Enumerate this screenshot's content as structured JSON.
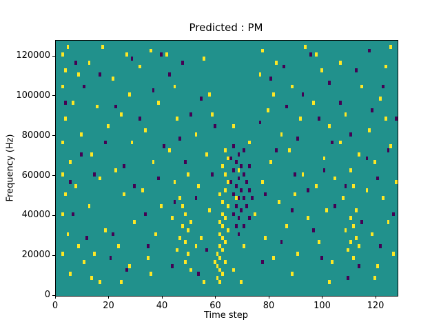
{
  "chart_data": {
    "type": "heatmap",
    "title": "Predicted : PM",
    "xlabel": "Time step",
    "ylabel": "Frequency (Hz)",
    "xlim": [
      0,
      128
    ],
    "ylim": [
      0,
      128000
    ],
    "grid": [
      128,
      64
    ],
    "x_ticks": [
      0,
      20,
      40,
      60,
      80,
      100,
      120
    ],
    "y_ticks": [
      0,
      20000,
      40000,
      60000,
      80000,
      100000,
      120000
    ],
    "legend": "none",
    "colors": {
      "background": "#21918c",
      "high": "#fde725",
      "low": "#440154"
    },
    "cells": {
      "yellow": [
        [
          2,
          60
        ],
        [
          2,
          52
        ],
        [
          2,
          38
        ],
        [
          2,
          30
        ],
        [
          2,
          20
        ],
        [
          2,
          10
        ],
        [
          3,
          56
        ],
        [
          3,
          44
        ],
        [
          3,
          25
        ],
        [
          4,
          62
        ],
        [
          4,
          15
        ],
        [
          5,
          33
        ],
        [
          5,
          5
        ],
        [
          6,
          48
        ],
        [
          7,
          27
        ],
        [
          8,
          55
        ],
        [
          8,
          12
        ],
        [
          9,
          40
        ],
        [
          10,
          8
        ],
        [
          12,
          58
        ],
        [
          12,
          22
        ],
        [
          13,
          35
        ],
        [
          13,
          4
        ],
        [
          14,
          10
        ],
        [
          15,
          47
        ],
        [
          16,
          29
        ],
        [
          16,
          3
        ],
        [
          17,
          62
        ],
        [
          18,
          16
        ],
        [
          19,
          42
        ],
        [
          21,
          54
        ],
        [
          22,
          31
        ],
        [
          23,
          12
        ],
        [
          24,
          45
        ],
        [
          24,
          3
        ],
        [
          25,
          25
        ],
        [
          26,
          60
        ],
        [
          27,
          7
        ],
        [
          27,
          50
        ],
        [
          28,
          38
        ],
        [
          29,
          18
        ],
        [
          31,
          57
        ],
        [
          32,
          26
        ],
        [
          33,
          41
        ],
        [
          34,
          9
        ],
        [
          35,
          61
        ],
        [
          35,
          5
        ],
        [
          36,
          33
        ],
        [
          37,
          15
        ],
        [
          38,
          48
        ],
        [
          39,
          22
        ],
        [
          41,
          60
        ],
        [
          42,
          36
        ],
        [
          43,
          19
        ],
        [
          44,
          28
        ],
        [
          44,
          52
        ],
        [
          45,
          11
        ],
        [
          45,
          44
        ],
        [
          46,
          24
        ],
        [
          46,
          14
        ],
        [
          47,
          22
        ],
        [
          47,
          17
        ],
        [
          48,
          20
        ],
        [
          48,
          13
        ],
        [
          48,
          8
        ],
        [
          49,
          16
        ],
        [
          49,
          10
        ],
        [
          49,
          30
        ],
        [
          50,
          18
        ],
        [
          50,
          6
        ],
        [
          52,
          40
        ],
        [
          52,
          12
        ],
        [
          53,
          27
        ],
        [
          54,
          14
        ],
        [
          55,
          59
        ],
        [
          55,
          3
        ],
        [
          56,
          35
        ],
        [
          57,
          21
        ],
        [
          57,
          50
        ],
        [
          58,
          45
        ],
        [
          59,
          8
        ],
        [
          60,
          4
        ],
        [
          60,
          7
        ],
        [
          60,
          10
        ],
        [
          61,
          3
        ],
        [
          61,
          6
        ],
        [
          61,
          9
        ],
        [
          61,
          12
        ],
        [
          61,
          15
        ],
        [
          61,
          18
        ],
        [
          61,
          25
        ],
        [
          62,
          5
        ],
        [
          62,
          11
        ],
        [
          62,
          14
        ],
        [
          62,
          17
        ],
        [
          62,
          20
        ],
        [
          62,
          23
        ],
        [
          62,
          32
        ],
        [
          63,
          8
        ],
        [
          63,
          13
        ],
        [
          63,
          19
        ],
        [
          63,
          26
        ],
        [
          63,
          30
        ],
        [
          63,
          36
        ],
        [
          64,
          16
        ],
        [
          64,
          22
        ],
        [
          64,
          28
        ],
        [
          64,
          34
        ],
        [
          66,
          42
        ],
        [
          66,
          6
        ],
        [
          67,
          24
        ],
        [
          68,
          31
        ],
        [
          69,
          3
        ],
        [
          70,
          12
        ],
        [
          72,
          38
        ],
        [
          74,
          20
        ],
        [
          76,
          55
        ],
        [
          77,
          28
        ],
        [
          77,
          61
        ],
        [
          78,
          14
        ],
        [
          79,
          46
        ],
        [
          80,
          33
        ],
        [
          81,
          9
        ],
        [
          81,
          50
        ],
        [
          82,
          58
        ],
        [
          83,
          23
        ],
        [
          84,
          40
        ],
        [
          86,
          17
        ],
        [
          87,
          36
        ],
        [
          88,
          52
        ],
        [
          88,
          5
        ],
        [
          89,
          25
        ],
        [
          90,
          10
        ],
        [
          91,
          44
        ],
        [
          92,
          30
        ],
        [
          93,
          62
        ],
        [
          94,
          19
        ],
        [
          96,
          48
        ],
        [
          97,
          27
        ],
        [
          97,
          60
        ],
        [
          98,
          13
        ],
        [
          99,
          56
        ],
        [
          100,
          34
        ],
        [
          101,
          21
        ],
        [
          102,
          42
        ],
        [
          102,
          3
        ],
        [
          103,
          8
        ],
        [
          104,
          29
        ],
        [
          106,
          38
        ],
        [
          106,
          58
        ],
        [
          107,
          24
        ],
        [
          108,
          16
        ],
        [
          108,
          45
        ],
        [
          109,
          11
        ],
        [
          110,
          19
        ],
        [
          110,
          13
        ],
        [
          110,
          31
        ],
        [
          111,
          17
        ],
        [
          111,
          9
        ],
        [
          111,
          27
        ],
        [
          112,
          21
        ],
        [
          112,
          14
        ],
        [
          113,
          12
        ],
        [
          113,
          35
        ],
        [
          114,
          52
        ],
        [
          116,
          26
        ],
        [
          117,
          41
        ],
        [
          118,
          15
        ],
        [
          119,
          33
        ],
        [
          119,
          4
        ],
        [
          120,
          7
        ],
        [
          121,
          49
        ],
        [
          122,
          24
        ],
        [
          123,
          57
        ],
        [
          123,
          44
        ],
        [
          124,
          18
        ],
        [
          125,
          37
        ],
        [
          125,
          62
        ],
        [
          126,
          10
        ],
        [
          127,
          28
        ]
      ],
      "purple": [
        [
          3,
          48
        ],
        [
          5,
          28
        ],
        [
          6,
          20
        ],
        [
          7,
          58
        ],
        [
          9,
          35
        ],
        [
          10,
          52
        ],
        [
          11,
          14
        ],
        [
          14,
          30
        ],
        [
          16,
          55
        ],
        [
          18,
          38
        ],
        [
          20,
          9
        ],
        [
          21,
          15
        ],
        [
          22,
          47
        ],
        [
          25,
          32
        ],
        [
          26,
          6
        ],
        [
          28,
          59
        ],
        [
          29,
          27
        ],
        [
          31,
          44
        ],
        [
          33,
          20
        ],
        [
          34,
          12
        ],
        [
          36,
          51
        ],
        [
          38,
          29
        ],
        [
          39,
          60
        ],
        [
          40,
          37
        ],
        [
          42,
          55
        ],
        [
          43,
          7
        ],
        [
          44,
          23
        ],
        [
          46,
          39
        ],
        [
          47,
          58
        ],
        [
          48,
          33
        ],
        [
          50,
          45
        ],
        [
          52,
          24
        ],
        [
          53,
          5
        ],
        [
          54,
          49
        ],
        [
          56,
          11
        ],
        [
          58,
          30
        ],
        [
          59,
          42
        ],
        [
          65,
          34
        ],
        [
          65,
          28
        ],
        [
          66,
          31
        ],
        [
          66,
          25
        ],
        [
          66,
          20
        ],
        [
          66,
          37
        ],
        [
          67,
          33
        ],
        [
          67,
          27
        ],
        [
          67,
          22
        ],
        [
          67,
          17
        ],
        [
          68,
          35
        ],
        [
          68,
          29
        ],
        [
          68,
          24
        ],
        [
          68,
          19
        ],
        [
          68,
          15
        ],
        [
          69,
          32
        ],
        [
          69,
          26
        ],
        [
          69,
          21
        ],
        [
          70,
          30
        ],
        [
          70,
          24
        ],
        [
          70,
          17
        ],
        [
          70,
          36
        ],
        [
          71,
          28
        ],
        [
          71,
          22
        ],
        [
          72,
          26
        ],
        [
          72,
          19
        ],
        [
          72,
          32
        ],
        [
          73,
          24
        ],
        [
          76,
          43
        ],
        [
          77,
          8
        ],
        [
          78,
          25
        ],
        [
          80,
          54
        ],
        [
          82,
          36
        ],
        [
          84,
          13
        ],
        [
          85,
          57
        ],
        [
          86,
          47
        ],
        [
          88,
          21
        ],
        [
          89,
          30
        ],
        [
          90,
          39
        ],
        [
          92,
          50
        ],
        [
          94,
          26
        ],
        [
          95,
          60
        ],
        [
          96,
          16
        ],
        [
          98,
          44
        ],
        [
          99,
          9
        ],
        [
          100,
          31
        ],
        [
          102,
          53
        ],
        [
          103,
          38
        ],
        [
          104,
          22
        ],
        [
          106,
          48
        ],
        [
          108,
          27
        ],
        [
          109,
          4
        ],
        [
          110,
          40
        ],
        [
          112,
          56
        ],
        [
          113,
          7
        ],
        [
          114,
          18
        ],
        [
          116,
          34
        ],
        [
          117,
          61
        ],
        [
          118,
          46
        ],
        [
          120,
          29
        ],
        [
          121,
          12
        ],
        [
          122,
          52
        ],
        [
          124,
          36
        ],
        [
          126,
          20
        ],
        [
          127,
          44
        ]
      ]
    }
  }
}
